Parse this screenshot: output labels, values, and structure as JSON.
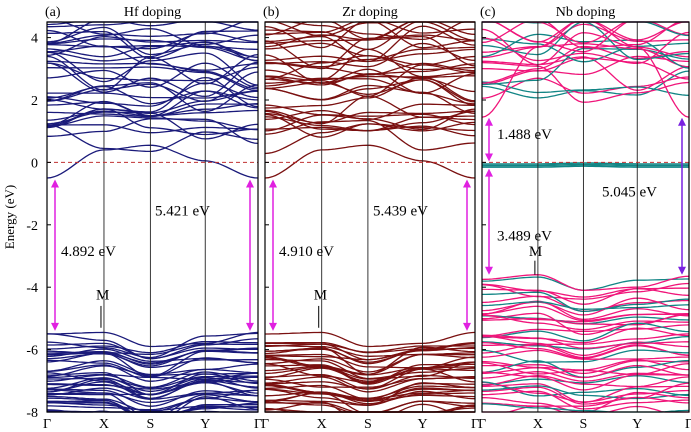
{
  "chart_data": {
    "type": "line",
    "ylabel": "Energy (eV)",
    "ylim": [
      -8,
      4.5
    ],
    "yticks": [
      4,
      2,
      0,
      -2,
      -4,
      -6,
      -8
    ],
    "xticks": [
      "Γ",
      "X",
      "S",
      "Y",
      "Γ"
    ],
    "fermi_level": 0,
    "panels": [
      {
        "tag": "(a)",
        "title": "Hf doping",
        "color": "#1a1a7a",
        "cbm": -0.5,
        "vbm": -5.4,
        "annotations": [
          {
            "text": "4.892 eV",
            "arrow": "#e020e0"
          },
          {
            "text": "5.421 eV",
            "arrow": "#e020e0"
          },
          {
            "text": "M"
          }
        ]
      },
      {
        "tag": "(b)",
        "title": "Zr doping",
        "color": "#7a1010",
        "cbm": -0.5,
        "vbm": -5.4,
        "annotations": [
          {
            "text": "4.910 eV",
            "arrow": "#e020e0"
          },
          {
            "text": "5.439 eV",
            "arrow": "#e020e0"
          },
          {
            "text": "M"
          }
        ]
      },
      {
        "tag": "(c)",
        "title": "Nb doping",
        "color": "#f0157a",
        "color2": "#128585",
        "cbm": 1.45,
        "impurity_band": -0.08,
        "vbm": -3.6,
        "annotations": [
          {
            "text": "1.488 eV",
            "arrow": "#e020e0"
          },
          {
            "text": "3.489 eV",
            "arrow": "#e020e0"
          },
          {
            "text": "5.045 eV",
            "arrow": "#7a20e0"
          },
          {
            "text": "M"
          }
        ]
      }
    ]
  }
}
